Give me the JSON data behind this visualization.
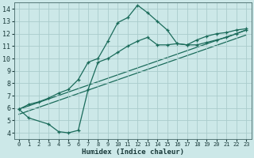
{
  "xlabel": "Humidex (Indice chaleur)",
  "bg_color": "#cce8e8",
  "grid_color": "#aacccc",
  "line_color": "#1a6b5a",
  "xlim": [
    -0.5,
    23.5
  ],
  "ylim": [
    3.5,
    14.5
  ],
  "xticks": [
    0,
    1,
    2,
    3,
    4,
    5,
    6,
    7,
    8,
    9,
    10,
    11,
    12,
    13,
    14,
    15,
    16,
    17,
    18,
    19,
    20,
    21,
    22,
    23
  ],
  "yticks": [
    4,
    5,
    6,
    7,
    8,
    9,
    10,
    11,
    12,
    13,
    14
  ],
  "series": [
    {
      "x": [
        0,
        1,
        2,
        3,
        4,
        5,
        6,
        7,
        8,
        9,
        10,
        11,
        12,
        13,
        14,
        15,
        16,
        17,
        18,
        19,
        20,
        21,
        22,
        23
      ],
      "y": [
        5.9,
        6.3,
        6.5,
        6.8,
        7.2,
        7.5,
        8.3,
        9.7,
        10.0,
        11.4,
        12.9,
        13.3,
        14.3,
        13.7,
        13.0,
        12.3,
        11.2,
        11.1,
        11.5,
        11.8,
        12.0,
        12.1,
        12.3,
        12.4
      ],
      "marker": true
    },
    {
      "x": [
        0,
        1,
        3,
        4,
        5,
        6,
        7,
        8,
        9,
        10,
        11,
        12,
        13,
        14,
        15,
        16,
        17,
        18,
        19,
        20,
        21,
        22,
        23
      ],
      "y": [
        5.9,
        5.2,
        4.7,
        4.1,
        4.0,
        4.2,
        7.5,
        9.7,
        10.0,
        10.5,
        11.0,
        11.4,
        11.7,
        11.1,
        11.1,
        11.2,
        11.1,
        11.1,
        11.3,
        11.5,
        11.7,
        12.0,
        12.3
      ],
      "marker": true
    },
    {
      "x": [
        0,
        23
      ],
      "y": [
        5.9,
        12.3
      ],
      "marker": false
    },
    {
      "x": [
        0,
        23
      ],
      "y": [
        5.5,
        11.9
      ],
      "marker": false
    }
  ]
}
